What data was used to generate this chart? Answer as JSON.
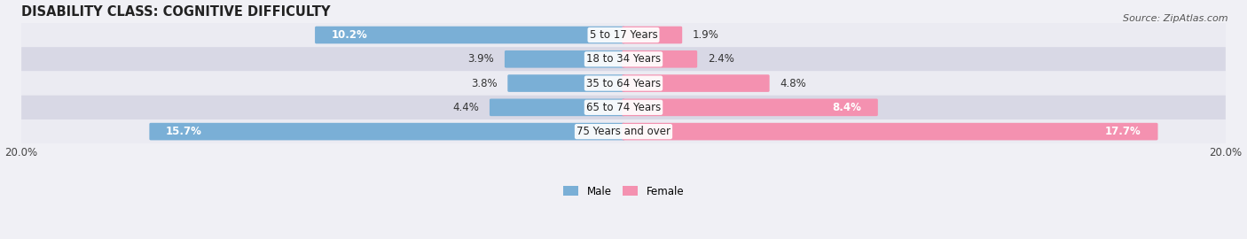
{
  "title": "DISABILITY CLASS: COGNITIVE DIFFICULTY",
  "source": "Source: ZipAtlas.com",
  "categories": [
    "5 to 17 Years",
    "18 to 34 Years",
    "35 to 64 Years",
    "65 to 74 Years",
    "75 Years and over"
  ],
  "male_values": [
    10.2,
    3.9,
    3.8,
    4.4,
    15.7
  ],
  "female_values": [
    1.9,
    2.4,
    4.8,
    8.4,
    17.7
  ],
  "max_val": 20.0,
  "male_color": "#7aafd6",
  "female_color": "#f491b0",
  "male_label": "Male",
  "female_label": "Female",
  "row_bg_light": "#ebebf2",
  "row_bg_dark": "#d8d8e5",
  "bar_height": 0.62,
  "title_fontsize": 10.5,
  "label_fontsize": 8.5,
  "value_fontsize": 8.5,
  "axis_label_fontsize": 8.5
}
